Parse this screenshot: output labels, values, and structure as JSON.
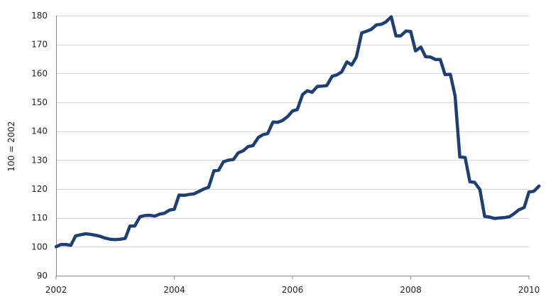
{
  "chart_data": {
    "type": "line",
    "title": "",
    "xlabel": "",
    "ylabel": "100 = 2002",
    "xlim": [
      2002,
      2010
    ],
    "ylim": [
      90,
      180
    ],
    "y_ticks": [
      90,
      100,
      110,
      120,
      130,
      140,
      150,
      160,
      170,
      180
    ],
    "x_ticks": [
      2002,
      2004,
      2006,
      2008,
      2010
    ],
    "x_tick_labels": [
      "2002",
      "2004",
      "2006",
      "2008",
      "2010"
    ],
    "grid": "horizontal",
    "legend": "none",
    "series": [
      {
        "color": "#1f3f73",
        "points": [
          [
            2002.0,
            100.0
          ],
          [
            2002.08,
            100.8
          ],
          [
            2002.17,
            100.8
          ],
          [
            2002.25,
            100.5
          ],
          [
            2002.33,
            103.8
          ],
          [
            2002.42,
            104.2
          ],
          [
            2002.5,
            104.5
          ],
          [
            2002.58,
            104.3
          ],
          [
            2002.67,
            104.0
          ],
          [
            2002.75,
            103.6
          ],
          [
            2002.83,
            103.0
          ],
          [
            2002.92,
            102.6
          ],
          [
            2003.0,
            102.5
          ],
          [
            2003.08,
            102.6
          ],
          [
            2003.17,
            102.9
          ],
          [
            2003.25,
            107.2
          ],
          [
            2003.33,
            107.2
          ],
          [
            2003.42,
            110.4
          ],
          [
            2003.5,
            110.8
          ],
          [
            2003.58,
            110.9
          ],
          [
            2003.67,
            110.6
          ],
          [
            2003.75,
            111.3
          ],
          [
            2003.83,
            111.6
          ],
          [
            2003.92,
            112.7
          ],
          [
            2004.0,
            113.0
          ],
          [
            2004.08,
            117.9
          ],
          [
            2004.17,
            117.8
          ],
          [
            2004.25,
            118.1
          ],
          [
            2004.33,
            118.3
          ],
          [
            2004.42,
            119.2
          ],
          [
            2004.5,
            120.0
          ],
          [
            2004.58,
            120.6
          ],
          [
            2004.67,
            126.3
          ],
          [
            2004.75,
            126.5
          ],
          [
            2004.83,
            129.4
          ],
          [
            2004.92,
            130.0
          ],
          [
            2005.0,
            130.2
          ],
          [
            2005.08,
            132.5
          ],
          [
            2005.17,
            133.3
          ],
          [
            2005.25,
            134.7
          ],
          [
            2005.33,
            135.0
          ],
          [
            2005.42,
            137.8
          ],
          [
            2005.5,
            138.8
          ],
          [
            2005.58,
            139.2
          ],
          [
            2005.67,
            143.2
          ],
          [
            2005.75,
            143.1
          ],
          [
            2005.83,
            143.7
          ],
          [
            2005.92,
            145.1
          ],
          [
            2006.0,
            147.0
          ],
          [
            2006.08,
            147.5
          ],
          [
            2006.17,
            152.7
          ],
          [
            2006.25,
            154.0
          ],
          [
            2006.33,
            153.5
          ],
          [
            2006.42,
            155.5
          ],
          [
            2006.5,
            155.6
          ],
          [
            2006.58,
            155.8
          ],
          [
            2006.67,
            159.0
          ],
          [
            2006.75,
            159.5
          ],
          [
            2006.83,
            160.5
          ],
          [
            2006.92,
            164.0
          ],
          [
            2007.0,
            162.9
          ],
          [
            2007.08,
            165.7
          ],
          [
            2007.17,
            174.0
          ],
          [
            2007.25,
            174.6
          ],
          [
            2007.33,
            175.2
          ],
          [
            2007.42,
            176.8
          ],
          [
            2007.5,
            177.0
          ],
          [
            2007.58,
            177.8
          ],
          [
            2007.67,
            179.6
          ],
          [
            2007.75,
            173.0
          ],
          [
            2007.83,
            173.0
          ],
          [
            2007.92,
            174.7
          ],
          [
            2008.0,
            174.5
          ],
          [
            2008.08,
            167.8
          ],
          [
            2008.17,
            169.1
          ],
          [
            2008.25,
            165.8
          ],
          [
            2008.33,
            165.7
          ],
          [
            2008.42,
            164.8
          ],
          [
            2008.5,
            164.8
          ],
          [
            2008.58,
            159.6
          ],
          [
            2008.67,
            159.7
          ],
          [
            2008.75,
            152.3
          ],
          [
            2008.83,
            131.1
          ],
          [
            2008.92,
            130.9
          ],
          [
            2009.0,
            122.5
          ],
          [
            2009.08,
            122.3
          ],
          [
            2009.17,
            119.8
          ],
          [
            2009.25,
            110.5
          ],
          [
            2009.33,
            110.3
          ],
          [
            2009.42,
            109.8
          ],
          [
            2009.5,
            110.0
          ],
          [
            2009.58,
            110.1
          ],
          [
            2009.67,
            110.4
          ],
          [
            2009.75,
            111.5
          ],
          [
            2009.83,
            112.8
          ],
          [
            2009.92,
            113.6
          ],
          [
            2010.0,
            119.0
          ],
          [
            2010.08,
            119.2
          ],
          [
            2010.17,
            121.0
          ]
        ]
      }
    ]
  }
}
